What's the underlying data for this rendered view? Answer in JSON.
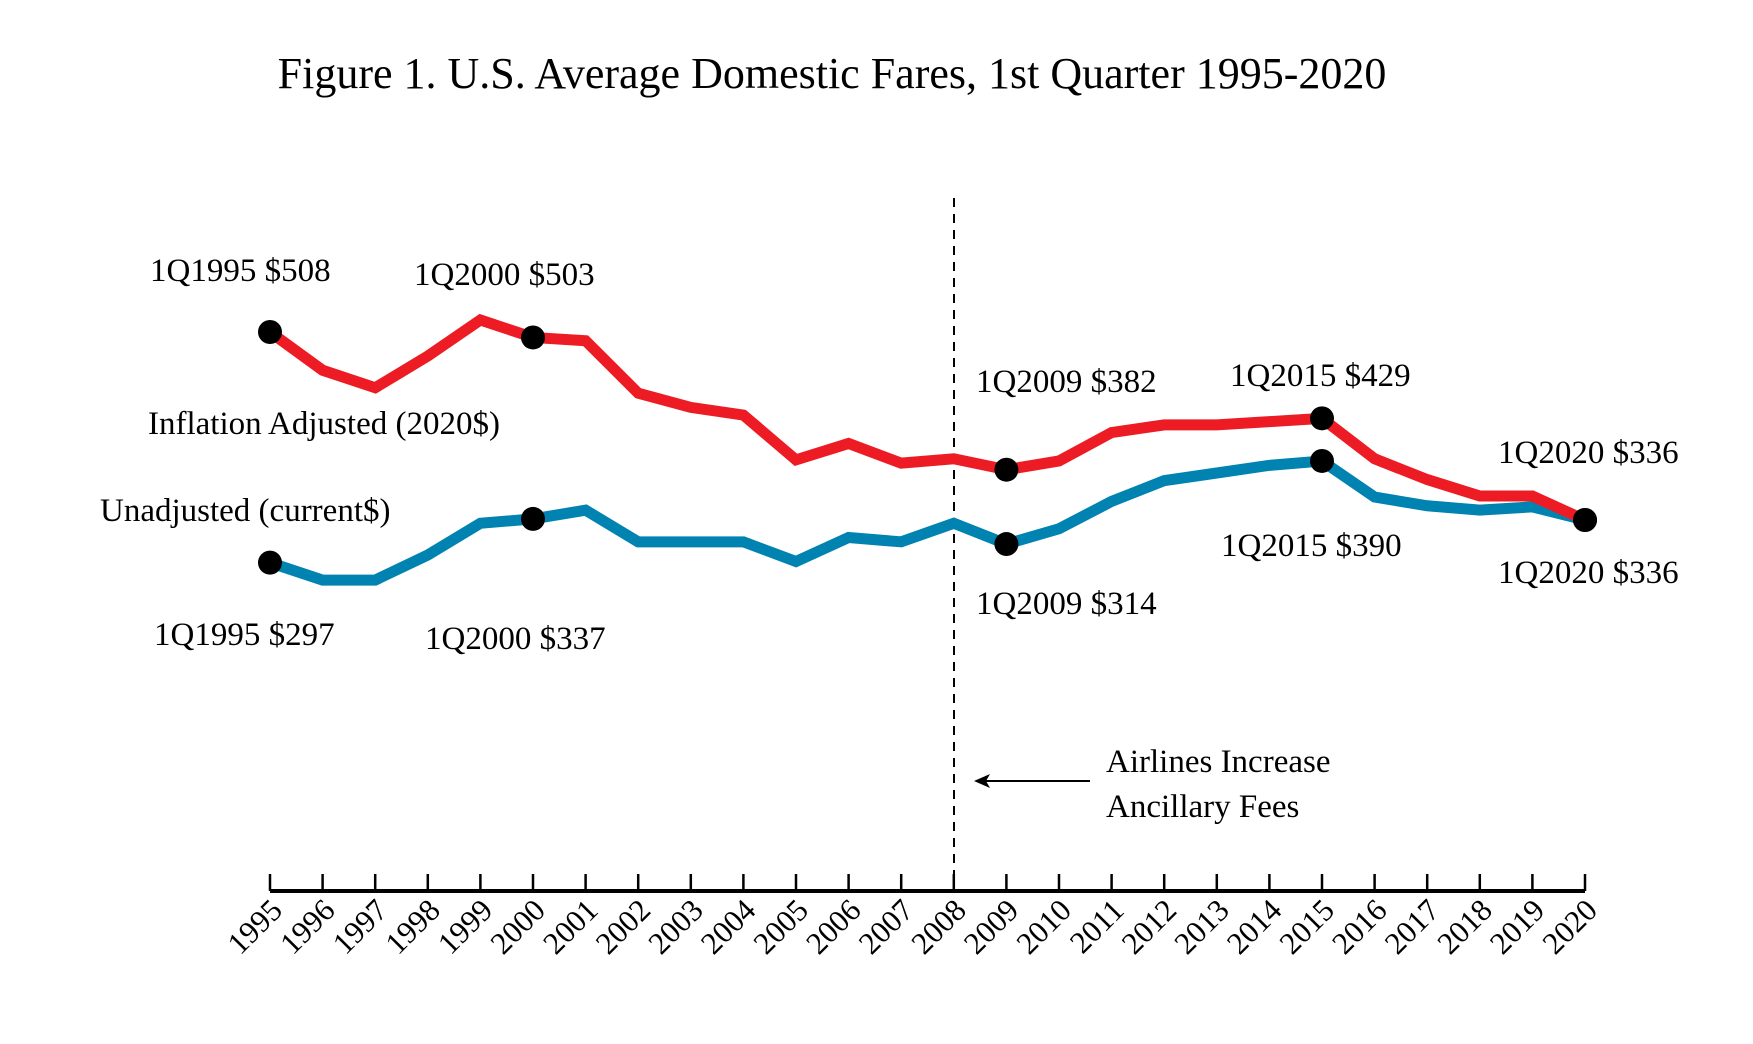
{
  "chart_data": {
    "type": "line",
    "title": "Figure 1. U.S. Average Domestic Fares, 1st Quarter 1995-2020",
    "xlabel": "",
    "ylabel": "",
    "grid": false,
    "x": [
      1995,
      1996,
      1997,
      1998,
      1999,
      2000,
      2001,
      2002,
      2003,
      2004,
      2005,
      2006,
      2007,
      2008,
      2009,
      2010,
      2011,
      2012,
      2013,
      2014,
      2015,
      2016,
      2017,
      2018,
      2019,
      2020
    ],
    "x_tick_labels": [
      "1995",
      "1996",
      "1997",
      "1998",
      "1999",
      "2000",
      "2001",
      "2002",
      "2003",
      "2004",
      "2005",
      "2006",
      "2007",
      "2008",
      "2009",
      "2010",
      "2011",
      "2012",
      "2013",
      "2014",
      "2015",
      "2016",
      "2017",
      "2018",
      "2019",
      "2020"
    ],
    "series": [
      {
        "name": "Inflation Adjusted (2020$)",
        "color": "#ED1C24",
        "values": [
          508,
          473,
          457,
          486,
          519,
          503,
          500,
          452,
          439,
          432,
          391,
          406,
          388,
          392,
          382,
          390,
          416,
          423,
          423,
          426,
          429,
          392,
          373,
          358,
          358,
          336
        ]
      },
      {
        "name": "Unadjusted (current$)",
        "color": "#0083B0",
        "values": [
          297,
          281,
          281,
          304,
          333,
          337,
          345,
          316,
          316,
          316,
          298,
          320,
          316,
          333,
          314,
          328,
          353,
          372,
          379,
          386,
          390,
          357,
          349,
          345,
          348,
          336
        ]
      }
    ],
    "annotations": [
      {
        "text": "1Q1995 $508",
        "series": 0,
        "x": 1995
      },
      {
        "text": "1Q2000 $503",
        "series": 0,
        "x": 2000
      },
      {
        "text": "1Q2009 $382",
        "series": 0,
        "x": 2009
      },
      {
        "text": "1Q2015 $429",
        "series": 0,
        "x": 2015
      },
      {
        "text": "1Q2020 $336",
        "series": 0,
        "x": 2020
      },
      {
        "text": "1Q1995 $297",
        "series": 1,
        "x": 1995
      },
      {
        "text": "1Q2000 $337",
        "series": 1,
        "x": 2000
      },
      {
        "text": "1Q2009 $314",
        "series": 1,
        "x": 2009
      },
      {
        "text": "1Q2015 $390",
        "series": 1,
        "x": 2015
      },
      {
        "text": "1Q2020 $336",
        "series": 1,
        "x": 2020
      }
    ],
    "event_line": {
      "x": 2008,
      "style": "dashed",
      "text_line1": "Airlines Increase",
      "text_line2": "Ancillary Fees"
    }
  }
}
